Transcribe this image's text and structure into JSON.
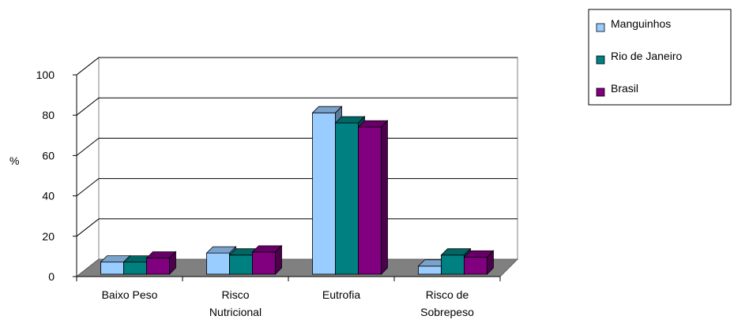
{
  "chart_data": {
    "type": "bar",
    "ylabel": "%",
    "ylim": [
      0,
      100
    ],
    "yticks": [
      0,
      20,
      40,
      60,
      80,
      100
    ],
    "grid": true,
    "legend_position": "top-right",
    "categories": [
      [
        "Baixo Peso"
      ],
      [
        "Risco",
        "Nutricional"
      ],
      [
        "Eutrofia"
      ],
      [
        "Risco de",
        "Sobrepeso"
      ]
    ],
    "series": [
      {
        "name": "Manguinhos",
        "color": "#99ccff",
        "values": [
          6,
          10.5,
          80,
          4
        ]
      },
      {
        "name": "Rio de Janeiro",
        "color": "#008080",
        "values": [
          6,
          9.5,
          75,
          9.5
        ]
      },
      {
        "name": "Brasil",
        "color": "#800080",
        "values": [
          8,
          11,
          73,
          8.5
        ]
      }
    ]
  }
}
